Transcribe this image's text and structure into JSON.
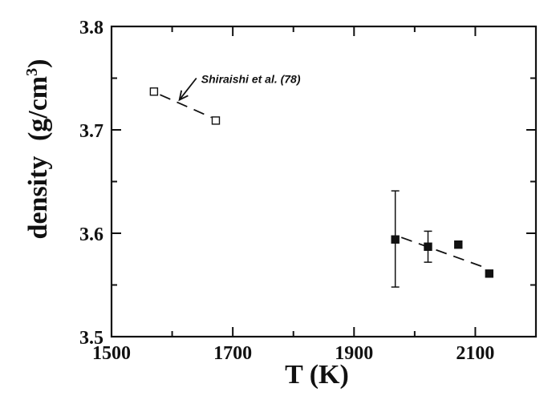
{
  "chart_data": {
    "type": "scatter",
    "xlabel": "T (K)",
    "ylabel_main": "density",
    "ylabel_unit_prefix": "(g/cm",
    "ylabel_unit_sup": "3",
    "ylabel_unit_suffix": ")",
    "xlim": [
      1500,
      2200
    ],
    "ylim": [
      3.5,
      3.8
    ],
    "x_ticks": [
      1500,
      1700,
      1900,
      2100
    ],
    "x_minor_ticks": [
      1600,
      1800,
      2000,
      2200
    ],
    "y_ticks": [
      "3.5",
      "3.6",
      "3.7",
      "3.8"
    ],
    "y_minor_ticks": [
      3.55,
      3.65,
      3.75
    ],
    "grid": false,
    "series": [
      {
        "marker": "open-square",
        "points": [
          {
            "x": 1570,
            "y": 3.737
          },
          {
            "x": 1672,
            "y": 3.709
          }
        ],
        "fit": {
          "x": [
            1580,
            1665
          ],
          "y": [
            3.734,
            3.712
          ]
        }
      },
      {
        "marker": "filled-square",
        "points": [
          {
            "x": 1968,
            "y": 3.594,
            "err_low": 3.548,
            "err_high": 3.641
          },
          {
            "x": 2022,
            "y": 3.587,
            "err_low": 3.572,
            "err_high": 3.602
          },
          {
            "x": 2072,
            "y": 3.589
          },
          {
            "x": 2123,
            "y": 3.561
          }
        ],
        "fit": {
          "x": [
            1978,
            2120
          ],
          "y": [
            3.596,
            3.566
          ]
        }
      }
    ],
    "annotation": {
      "text": "Shiraishi et al. (78)",
      "arrow_from": {
        "x": 1640,
        "y": 3.75
      },
      "arrow_to": {
        "x": 1612,
        "y": 3.729
      }
    }
  }
}
